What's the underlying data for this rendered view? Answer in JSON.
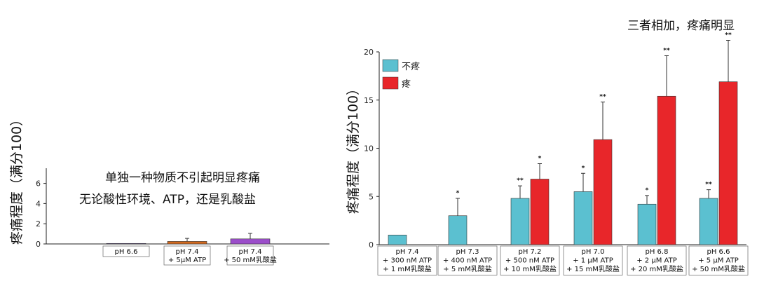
{
  "chart_data": [
    {
      "type": "bar",
      "annotations": [
        "单独一种物质不引起明显疼痛",
        "无论酸性环境、ATP，还是乳酸盐"
      ],
      "ylabel": "疼痛程度（满分100）",
      "ylim": [
        0,
        7.5
      ],
      "yticks": [
        0,
        2,
        4,
        6
      ],
      "categories": [
        [
          "pH 6.6"
        ],
        [
          "pH 7.4",
          "+ 5μM  ATP"
        ],
        [
          "pH 7.4",
          "+ 50 mM乳酸盐"
        ]
      ],
      "values": [
        0.05,
        0.25,
        0.5
      ],
      "errors": [
        0.0,
        0.3,
        0.55
      ],
      "colors": [
        "#5a4a7a",
        "#d2691e",
        "#9b4dca"
      ]
    },
    {
      "type": "bar",
      "title": "三者相加，疼痛明显",
      "ylabel": "疼痛程度（满分100）",
      "ylim": [
        0,
        20
      ],
      "yticks": [
        0,
        5,
        10,
        15,
        20
      ],
      "categories": [
        [
          "pH 7.4",
          "+ 300 nM ATP",
          "+ 1 mM乳酸盐"
        ],
        [
          "pH 7.3",
          "+ 400 nM ATP",
          "+ 5 mM乳酸盐"
        ],
        [
          "pH 7.2",
          "+ 500 nM ATP",
          "+ 10 mM乳酸盐"
        ],
        [
          "pH 7.0",
          "+ 1 μM ATP",
          "+ 15 mM乳酸盐"
        ],
        [
          "pH 6.8",
          "+ 2 μM ATP",
          "+ 20 mM乳酸盐"
        ],
        [
          "pH 6.6",
          "+ 5 μM ATP",
          "+ 50 mM乳酸盐"
        ]
      ],
      "series": [
        {
          "name": "不疼",
          "color": "#5bc0d0",
          "values": [
            1.0,
            3.0,
            4.8,
            5.5,
            4.2,
            4.8
          ],
          "errors": [
            0,
            1.8,
            1.3,
            1.9,
            0.9,
            0.9
          ],
          "sig": [
            "",
            "*",
            "**",
            "*",
            "*",
            "**"
          ]
        },
        {
          "name": "疼",
          "color": "#e8262a",
          "values": [
            null,
            null,
            6.8,
            10.9,
            15.4,
            16.9
          ],
          "errors": [
            null,
            null,
            1.6,
            3.9,
            4.2,
            4.3
          ],
          "sig": [
            "",
            "",
            "*",
            "**",
            "**",
            "**"
          ]
        }
      ],
      "legend_position": "top-left"
    }
  ]
}
